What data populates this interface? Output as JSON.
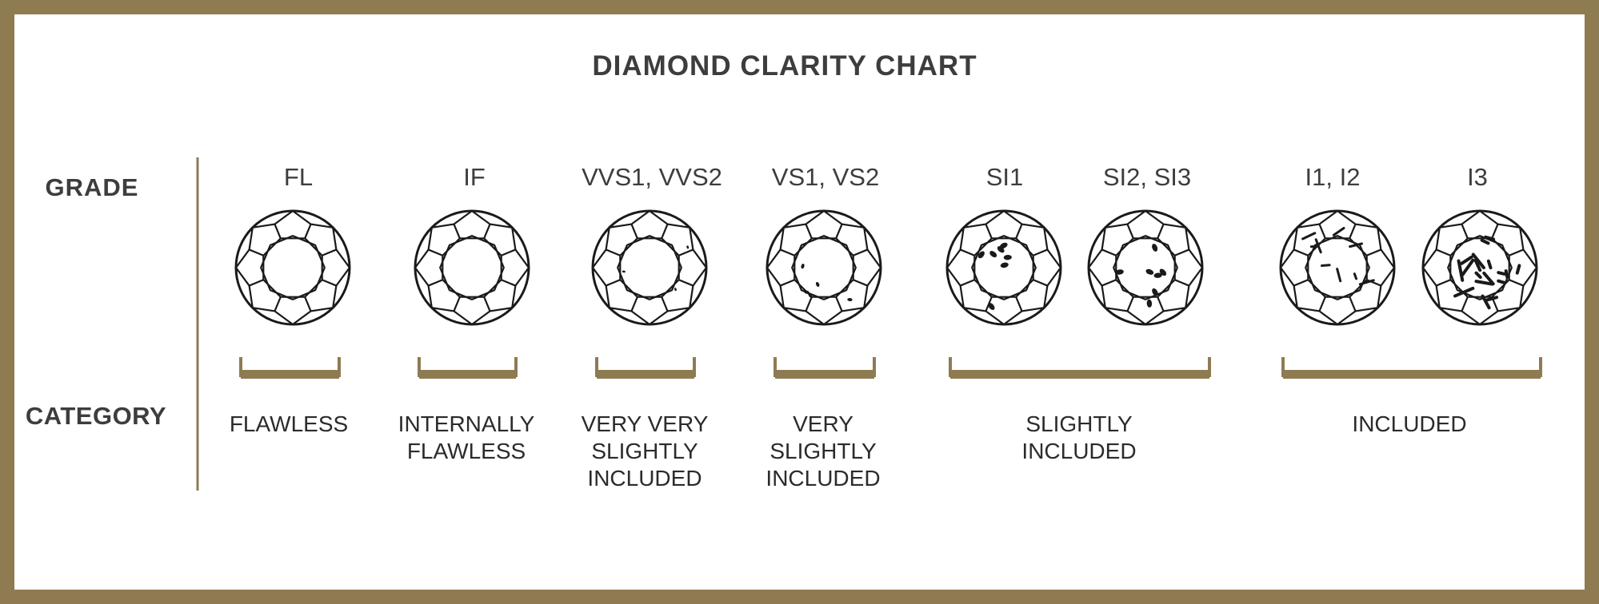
{
  "title": "DIAMOND CLARITY CHART",
  "row_labels": {
    "grade": "GRADE",
    "category": "CATEGORY"
  },
  "grades": [
    {
      "label": "FL",
      "inclusions": "none"
    },
    {
      "label": "IF",
      "inclusions": "none"
    },
    {
      "label": "VVS1, VVS2",
      "inclusions": "minute"
    },
    {
      "label": "VS1, VS2",
      "inclusions": "minor"
    },
    {
      "label": "SI1",
      "inclusions": "noticeable"
    },
    {
      "label": "SI2, SI3",
      "inclusions": "noticeable"
    },
    {
      "label": "I1, I2",
      "inclusions": "obvious"
    },
    {
      "label": "I3",
      "inclusions": "heavy"
    }
  ],
  "categories": [
    {
      "lines": [
        "FLAWLESS"
      ],
      "grades": [
        "FL"
      ]
    },
    {
      "lines": [
        "INTERNALLY",
        "FLAWLESS"
      ],
      "grades": [
        "IF"
      ]
    },
    {
      "lines": [
        "VERY VERY",
        "SLIGHTLY",
        "INCLUDED"
      ],
      "grades": [
        "VVS1, VVS2"
      ]
    },
    {
      "lines": [
        "VERY",
        "SLIGHTLY",
        "INCLUDED"
      ],
      "grades": [
        "VS1, VS2"
      ]
    },
    {
      "lines": [
        "SLIGHTLY",
        "INCLUDED"
      ],
      "grades": [
        "SI1",
        "SI2, SI3"
      ]
    },
    {
      "lines": [
        "INCLUDED"
      ],
      "grades": [
        "I1, I2",
        "I3"
      ]
    }
  ],
  "colors": {
    "frame": "#8e7b52",
    "bracket": "#8e7b52",
    "text": "#3d3d3d",
    "diamond": "#1a1a1a",
    "background": "#ffffff"
  }
}
